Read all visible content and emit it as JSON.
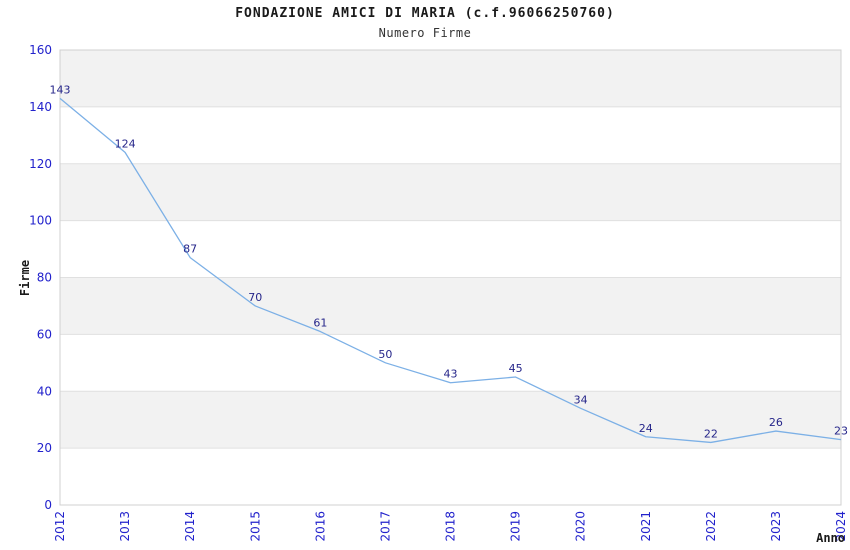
{
  "chart_data": {
    "type": "line",
    "title": "FONDAZIONE AMICI DI MARIA (c.f.96066250760)",
    "subtitle": "Numero Firme",
    "xlabel": "Anno",
    "ylabel": "Firme",
    "x": [
      "2012",
      "2013",
      "2014",
      "2015",
      "2016",
      "2017",
      "2018",
      "2019",
      "2020",
      "2021",
      "2022",
      "2023",
      "2024"
    ],
    "values": [
      143,
      124,
      87,
      70,
      61,
      50,
      43,
      45,
      34,
      24,
      22,
      26,
      23
    ],
    "ylim": [
      0,
      160
    ],
    "ytick_step": 20,
    "grid": "alternating-horizontal-bands",
    "legend": "none"
  },
  "colors": {
    "line": "#7cb0e6",
    "tick_label": "#2222cc",
    "data_label": "#26268a",
    "band_gray": "#f2f2f2",
    "band_white": "#ffffff",
    "gridline": "#e0e0e0",
    "plot_border": "#d0d0d0",
    "title": "#1a1a1a",
    "axis_title": "#1a1a1a"
  }
}
